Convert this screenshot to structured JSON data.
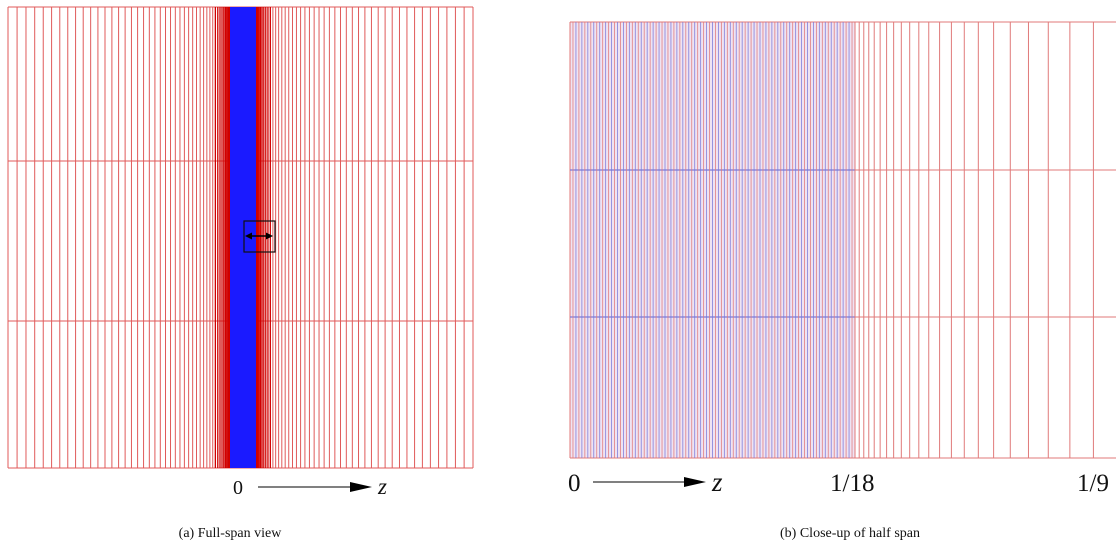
{
  "panel_a": {
    "axis_origin": "0",
    "axis_var": "z",
    "caption": "(a) Full-span view",
    "colors": {
      "grid": "#e05a5a",
      "core": "#1a1aff",
      "dense": "#d00000",
      "box": "#111111"
    }
  },
  "panel_b": {
    "axis_origin": "0",
    "axis_var": "z",
    "tick_mid": "1/18",
    "tick_end": "1/9",
    "caption": "(b) Close-up of half span",
    "colors": {
      "grid": "#e07a7a",
      "blue": "#7a7ad8",
      "tint": "#eadcf0"
    }
  }
}
